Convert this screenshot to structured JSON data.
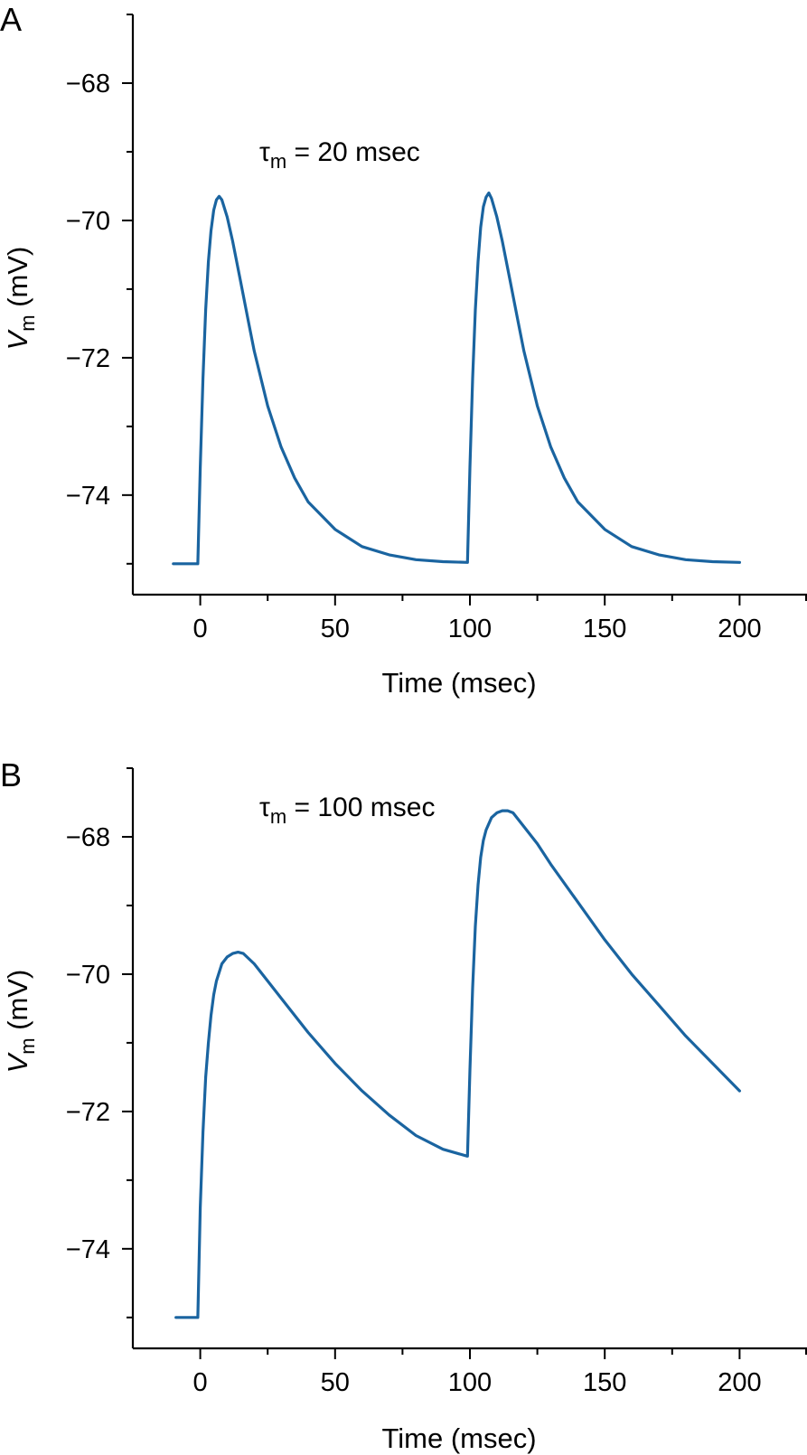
{
  "chart_data": [
    {
      "type": "line",
      "panel_label": "A",
      "annotation": {
        "symbol": "τ",
        "subscript": "m",
        "text": " = 20 msec"
      },
      "xlabel": "Time (msec)",
      "ylabel": {
        "symbol": "V",
        "subscript": "m",
        "unit": " (mV)"
      },
      "xlim": [
        -25,
        225
      ],
      "ylim": [
        -75.45,
        -67.0
      ],
      "xticks": [
        0,
        50,
        100,
        150,
        200
      ],
      "xtick_labels": [
        "0",
        "50",
        "100",
        "150",
        "200"
      ],
      "x_minor_ticks": [
        25,
        75,
        125,
        175,
        225
      ],
      "yticks": [
        -68,
        -70,
        -72,
        -74
      ],
      "ytick_labels": [
        "−68",
        "−70",
        "−72",
        "−74"
      ],
      "y_minor_ticks": [
        -67,
        -69,
        -71,
        -73,
        -75
      ],
      "series": [
        {
          "name": "Vm",
          "color": "#1a64a0",
          "x": [
            -10,
            -1,
            -0.9,
            0,
            1,
            2,
            3,
            4,
            5,
            6,
            7,
            8,
            10,
            12,
            15,
            18,
            20,
            25,
            30,
            35,
            40,
            50,
            60,
            70,
            80,
            90,
            99,
            99.1,
            100,
            101,
            102,
            103,
            104,
            105,
            106,
            107,
            108,
            110,
            112,
            115,
            118,
            120,
            125,
            130,
            135,
            140,
            150,
            160,
            170,
            180,
            190,
            200
          ],
          "y": [
            -75,
            -75,
            -75,
            -73.6,
            -72.3,
            -71.3,
            -70.6,
            -70.15,
            -69.85,
            -69.7,
            -69.65,
            -69.7,
            -69.95,
            -70.3,
            -70.9,
            -71.5,
            -71.9,
            -72.7,
            -73.3,
            -73.75,
            -74.1,
            -74.5,
            -74.75,
            -74.87,
            -74.94,
            -74.97,
            -74.98,
            -74.98,
            -73.6,
            -72.3,
            -71.3,
            -70.6,
            -70.1,
            -69.8,
            -69.66,
            -69.6,
            -69.68,
            -69.95,
            -70.3,
            -70.9,
            -71.5,
            -71.9,
            -72.7,
            -73.3,
            -73.75,
            -74.1,
            -74.5,
            -74.75,
            -74.87,
            -74.94,
            -74.97,
            -74.98
          ]
        }
      ]
    },
    {
      "type": "line",
      "panel_label": "B",
      "annotation": {
        "symbol": "τ",
        "subscript": "m",
        "text": " = 100 msec"
      },
      "xlabel": "Time (msec)",
      "ylabel": {
        "symbol": "V",
        "subscript": "m",
        "unit": " (mV)"
      },
      "xlim": [
        -25,
        225
      ],
      "ylim": [
        -75.45,
        -67.0
      ],
      "xticks": [
        0,
        50,
        100,
        150,
        200
      ],
      "xtick_labels": [
        "0",
        "50",
        "100",
        "150",
        "200"
      ],
      "x_minor_ticks": [
        25,
        75,
        125,
        175,
        225
      ],
      "yticks": [
        -68,
        -70,
        -72,
        -74
      ],
      "ytick_labels": [
        "−68",
        "−70",
        "−72",
        "−74"
      ],
      "y_minor_ticks": [
        -67,
        -69,
        -71,
        -73,
        -75
      ],
      "series": [
        {
          "name": "Vm",
          "color": "#1a64a0",
          "x": [
            -9,
            -1,
            -0.9,
            0,
            1,
            2,
            3,
            4,
            5,
            6,
            8,
            10,
            12,
            14,
            16,
            20,
            25,
            30,
            40,
            50,
            60,
            70,
            80,
            90,
            99,
            99.1,
            100,
            101,
            102,
            103,
            104,
            105,
            106,
            108,
            110,
            112,
            114,
            116,
            120,
            125,
            130,
            140,
            150,
            160,
            170,
            180,
            190,
            200
          ],
          "y": [
            -75,
            -75,
            -75,
            -73.4,
            -72.3,
            -71.5,
            -71.0,
            -70.6,
            -70.3,
            -70.1,
            -69.85,
            -69.75,
            -69.7,
            -69.68,
            -69.7,
            -69.85,
            -70.1,
            -70.35,
            -70.85,
            -71.3,
            -71.7,
            -72.05,
            -72.35,
            -72.55,
            -72.65,
            -72.65,
            -71.4,
            -70.2,
            -69.3,
            -68.7,
            -68.3,
            -68.05,
            -67.9,
            -67.72,
            -67.65,
            -67.62,
            -67.62,
            -67.65,
            -67.85,
            -68.1,
            -68.4,
            -68.95,
            -69.5,
            -70.0,
            -70.45,
            -70.9,
            -71.3,
            -71.7
          ]
        }
      ]
    }
  ]
}
